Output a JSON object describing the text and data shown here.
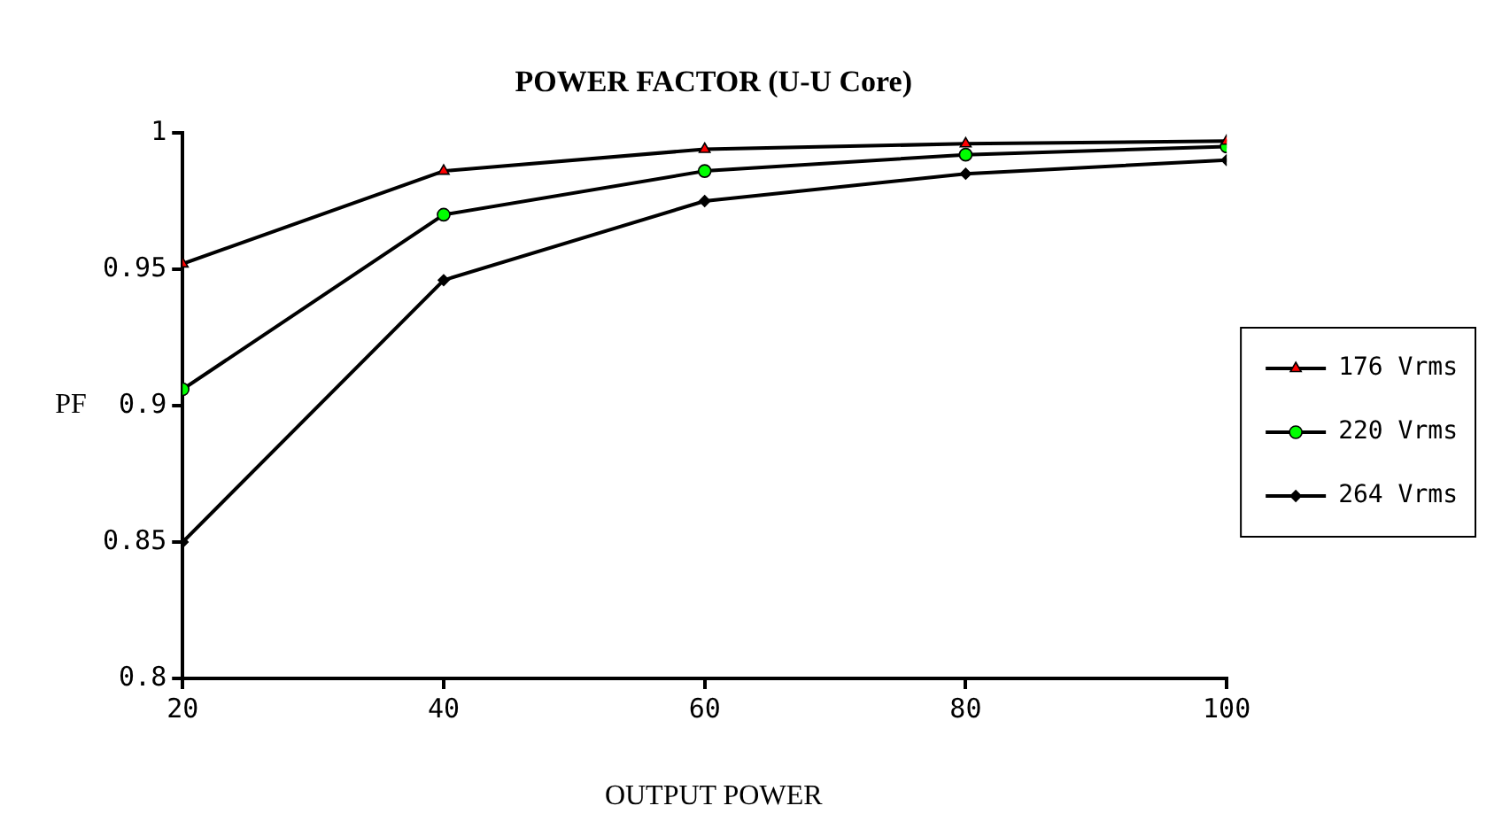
{
  "chart_data": {
    "type": "line",
    "title": "POWER FACTOR (U-U Core)",
    "xlabel": "OUTPUT POWER",
    "ylabel": "PF",
    "x": [
      20,
      40,
      60,
      80,
      100
    ],
    "xlim": [
      20,
      100
    ],
    "xticks": [
      20,
      40,
      60,
      80,
      100
    ],
    "ylim": [
      0.8,
      1
    ],
    "yticks": [
      0.8,
      0.85,
      0.9,
      0.95,
      1
    ],
    "grid": false,
    "legend": "right",
    "line_style": "solid",
    "series": [
      {
        "name": "176 Vrms",
        "color": "#ff0000",
        "marker": "triangle",
        "values": [
          0.952,
          0.986,
          0.994,
          0.996,
          0.997
        ]
      },
      {
        "name": "220 Vrms",
        "color": "#00ff00",
        "marker": "circle",
        "values": [
          0.906,
          0.97,
          0.986,
          0.992,
          0.995
        ]
      },
      {
        "name": "264 Vrms",
        "color": "#000000",
        "marker": "diamond",
        "values": [
          0.85,
          0.946,
          0.975,
          0.985,
          0.99
        ]
      }
    ]
  }
}
